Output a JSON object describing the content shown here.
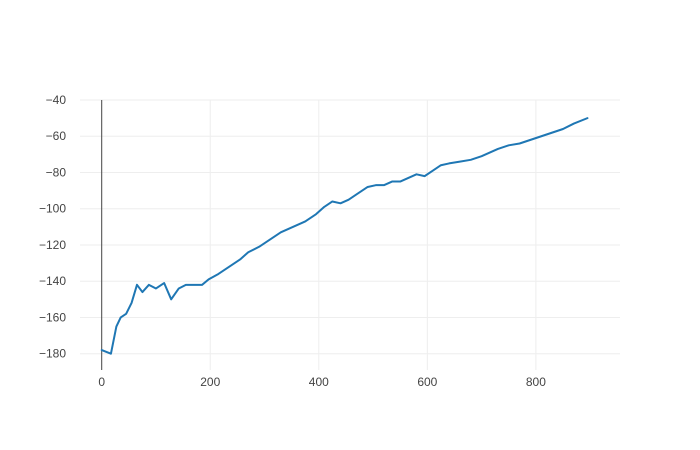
{
  "chart_data": {
    "type": "line",
    "title": "",
    "xlabel": "",
    "ylabel": "",
    "xlim": [
      -40,
      955
    ],
    "ylim": [
      -189,
      -40
    ],
    "x_ticks": [
      0,
      200,
      400,
      600,
      800
    ],
    "y_ticks": [
      -40,
      -60,
      -80,
      -100,
      -120,
      -140,
      -160,
      -180
    ],
    "x_tick_labels": [
      "0",
      "200",
      "400",
      "600",
      "800"
    ],
    "y_tick_labels": [
      "−40",
      "−60",
      "−80",
      "−100",
      "−120",
      "−140",
      "−160",
      "−180"
    ],
    "grid": true,
    "legend": "none",
    "series": [
      {
        "color": "#1f77b4",
        "x": [
          0,
          17,
          27,
          35,
          45,
          55,
          65,
          75,
          87,
          100,
          115,
          128,
          142,
          155,
          168,
          185,
          197,
          215,
          235,
          255,
          270,
          290,
          310,
          330,
          345,
          360,
          375,
          395,
          410,
          425,
          440,
          455,
          470,
          490,
          505,
          520,
          535,
          550,
          565,
          580,
          595,
          610,
          625,
          640,
          660,
          680,
          700,
          715,
          730,
          750,
          770,
          790,
          810,
          830,
          850,
          870,
          895
        ],
        "y": [
          -178,
          -180,
          -165,
          -160,
          -158,
          -152,
          -142,
          -146,
          -142,
          -144,
          -141,
          -150,
          -144,
          -142,
          -142,
          -142,
          -139,
          -136,
          -132,
          -128,
          -124,
          -121,
          -117,
          -113,
          -111,
          -109,
          -107,
          -103,
          -99,
          -96,
          -97,
          -95,
          -92,
          -88,
          -87,
          -87,
          -85,
          -85,
          -83,
          -81,
          -82,
          -79,
          -76,
          -75,
          -74,
          -73,
          -71,
          -69,
          -67,
          -65,
          -64,
          -62,
          -60,
          -58,
          -56,
          -53,
          -50
        ]
      }
    ]
  }
}
